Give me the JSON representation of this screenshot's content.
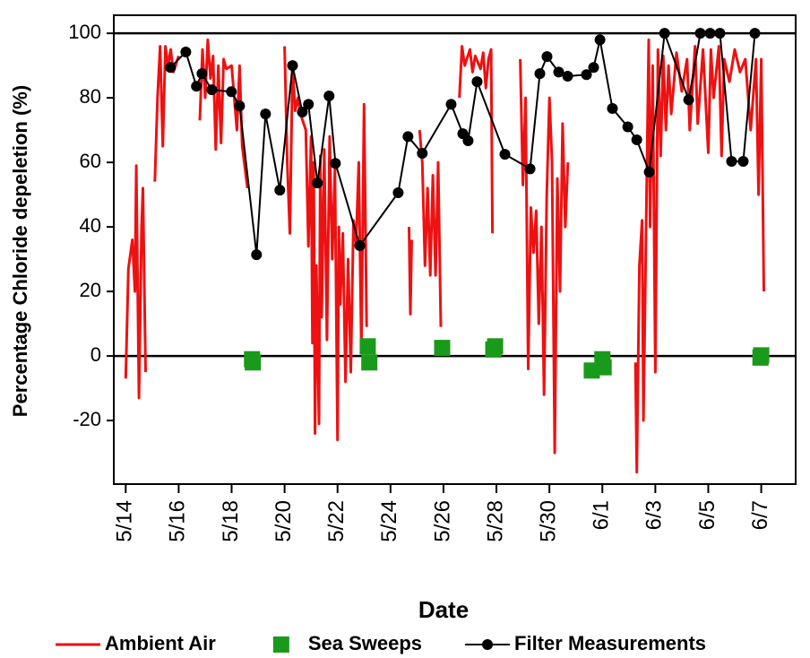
{
  "chart_data": {
    "type": "line",
    "x_label": "Date",
    "y_label": "Percentage Chloride depeletion (%)",
    "xlim": [
      13.55,
      39.3
    ],
    "ylim": [
      -39.7,
      105.6
    ],
    "xticks": [
      {
        "value": 14,
        "label": "5/14"
      },
      {
        "value": 16,
        "label": "5/16"
      },
      {
        "value": 18,
        "label": "5/18"
      },
      {
        "value": 20,
        "label": "5/20"
      },
      {
        "value": 22,
        "label": "5/22"
      },
      {
        "value": 24,
        "label": "5/24"
      },
      {
        "value": 26,
        "label": "5/26"
      },
      {
        "value": 28,
        "label": "5/28"
      },
      {
        "value": 30,
        "label": "5/30"
      },
      {
        "value": 32,
        "label": "6/1"
      },
      {
        "value": 34,
        "label": "6/3"
      },
      {
        "value": 36,
        "label": "6/5"
      },
      {
        "value": 38,
        "label": "6/7"
      }
    ],
    "yticks": [
      -20,
      0,
      20,
      40,
      60,
      80,
      100
    ],
    "hlines": [
      0,
      100
    ],
    "series": [
      {
        "name": "Ambient Air",
        "color": "#ee1111",
        "mode": "line",
        "x": [
          14.0,
          14.1,
          14.25,
          14.35,
          14.4,
          14.5,
          14.6,
          14.65,
          14.75,
          null,
          15.1,
          15.2,
          15.3,
          15.4,
          15.5,
          15.6,
          15.7,
          15.8,
          16.0,
          null,
          16.8,
          16.9,
          17.0,
          17.1,
          17.2,
          17.3,
          17.4,
          17.5,
          17.6,
          17.7,
          17.8,
          18.0,
          18.2,
          18.3,
          18.4,
          18.6,
          null,
          20.0,
          20.1,
          20.2,
          20.3,
          20.4,
          20.5,
          20.6,
          20.8,
          20.9,
          21.0,
          21.05,
          21.1,
          21.15,
          21.2,
          21.3,
          21.35,
          21.4,
          21.5,
          21.6,
          21.7,
          21.8,
          21.9,
          22.0,
          22.05,
          22.1,
          22.2,
          22.3,
          22.4,
          22.5,
          22.6,
          22.7,
          22.8,
          22.9,
          23.0,
          23.1,
          null,
          24.7,
          24.75,
          24.8,
          null,
          25.1,
          25.2,
          25.3,
          25.4,
          25.5,
          25.6,
          25.7,
          25.8,
          25.9,
          null,
          26.6,
          26.7,
          26.8,
          27.0,
          27.1,
          27.2,
          27.4,
          27.5,
          27.6,
          27.7,
          27.8,
          27.85,
          null,
          28.9,
          29.0,
          29.1,
          29.2,
          29.3,
          29.4,
          29.5,
          29.6,
          29.7,
          29.8,
          29.9,
          30.0,
          30.1,
          30.2,
          30.3,
          30.4,
          30.5,
          30.6,
          30.7,
          null,
          33.25,
          33.3,
          33.4,
          33.5,
          33.55,
          33.65,
          33.75,
          33.8,
          33.9,
          34.0,
          34.1,
          34.2,
          34.3,
          34.4,
          34.5,
          34.6,
          34.8,
          35.0,
          35.2,
          35.3,
          35.5,
          35.6,
          35.8,
          36.0,
          36.1,
          36.2,
          36.4,
          36.5,
          36.6,
          36.8,
          37.0,
          37.2,
          37.4,
          37.6,
          37.8,
          37.9,
          38.0,
          38.1
        ],
        "values": [
          -7,
          27,
          36,
          20,
          59,
          -13,
          40,
          52,
          -5,
          null,
          54,
          80,
          96,
          65,
          96,
          90,
          95,
          88,
          93,
          null,
          73,
          95,
          80,
          98,
          86,
          93,
          64,
          90,
          66,
          92,
          89,
          90,
          70,
          90,
          65,
          52,
          null,
          96,
          60,
          38,
          90,
          76,
          80,
          75,
          70,
          34,
          68,
          4,
          60,
          -24,
          28,
          -21,
          62,
          12,
          64,
          5,
          68,
          30,
          58,
          -26,
          40,
          16,
          38,
          -8,
          30,
          -5,
          42,
          35,
          60,
          2,
          78,
          9,
          null,
          40,
          13,
          36,
          null,
          70,
          60,
          28,
          52,
          25,
          56,
          25,
          60,
          9,
          null,
          80,
          96,
          90,
          95,
          88,
          93,
          89,
          94,
          83,
          92,
          95,
          38,
          null,
          92,
          53,
          80,
          -4,
          46,
          32,
          45,
          10,
          40,
          -12,
          50,
          80,
          60,
          -30,
          55,
          20,
          72,
          40,
          60,
          null,
          -2,
          -36,
          28,
          42,
          -20,
          38,
          98,
          40,
          90,
          -5,
          95,
          62,
          93,
          70,
          90,
          75,
          94,
          82,
          92,
          70,
          96,
          72,
          95,
          63,
          95,
          80,
          96,
          62,
          92,
          85,
          95,
          88,
          92,
          70,
          92,
          50,
          92,
          20
        ]
      },
      {
        "name": "Sea Sweeps",
        "color": "#1a9a1a",
        "mode": "markers",
        "x": [
          18.77,
          18.8,
          23.14,
          23.2,
          25.95,
          27.88,
          27.95,
          31.6,
          32.0,
          32.05,
          37.97,
          38.0
        ],
        "values": [
          -1,
          -2,
          3,
          -2,
          2.5,
          2,
          3,
          -4.5,
          -1,
          -3.5,
          -0.5,
          0.2
        ]
      },
      {
        "name": "Filter Measurements",
        "color": "#000000",
        "mode": "lines+markers",
        "x": [
          15.69,
          16.27,
          16.67,
          16.88,
          17.25,
          17.99,
          18.3,
          18.94,
          19.28,
          19.82,
          20.3,
          20.67,
          20.9,
          21.24,
          21.68,
          21.92,
          22.84,
          24.29,
          24.66,
          25.2,
          26.29,
          26.73,
          26.93,
          27.27,
          28.32,
          29.27,
          29.64,
          29.91,
          30.35,
          30.69,
          31.4,
          31.67,
          31.91,
          32.38,
          32.96,
          33.3,
          33.77,
          34.35,
          35.26,
          35.7,
          36.07,
          36.44,
          36.88,
          37.32,
          37.76
        ],
        "values": [
          89.4,
          94.2,
          83.6,
          87.5,
          82.5,
          81.9,
          77.5,
          31.4,
          75,
          51.4,
          90,
          75.6,
          78,
          53.6,
          80.6,
          59.7,
          34.2,
          50.6,
          68,
          62.8,
          78,
          68.9,
          66.7,
          85,
          62.5,
          58,
          87.5,
          92.8,
          88,
          86.7,
          87.2,
          89.4,
          98,
          76.7,
          71,
          67,
          57,
          100,
          79.4,
          100,
          100,
          100,
          60.3,
          60.3,
          100
        ]
      }
    ]
  }
}
